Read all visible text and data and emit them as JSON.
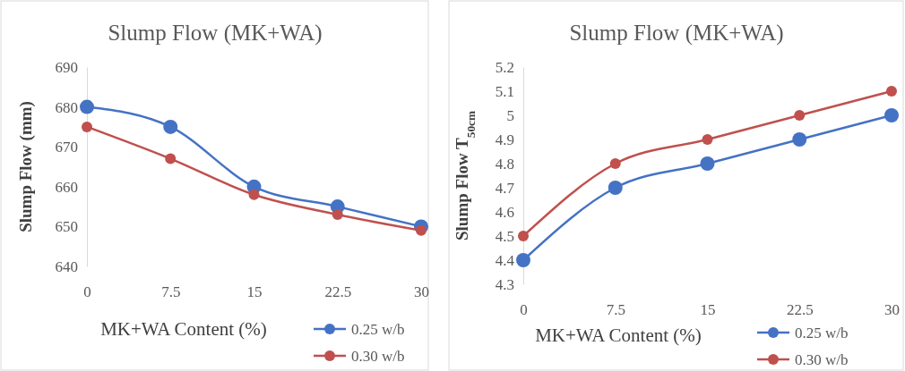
{
  "chart_data": [
    {
      "type": "line",
      "title": "Slump Flow (MK+WA)",
      "xlabel": "MK+WA Content (%)",
      "ylabel": "Slump Flow (mm)",
      "categories": [
        "0",
        "7.5",
        "15",
        "22.5",
        "30"
      ],
      "series": [
        {
          "name": "0.25 w/b",
          "color": "#4472c4",
          "values": [
            680,
            675,
            660,
            655,
            650
          ]
        },
        {
          "name": "0.30 w/b",
          "color": "#c0504d",
          "values": [
            675,
            667,
            658,
            653,
            649
          ]
        }
      ],
      "ylim": [
        640,
        690
      ],
      "yticks": [
        640,
        650,
        660,
        670,
        680,
        690
      ],
      "marker": "circle",
      "legend": "bottom right"
    },
    {
      "type": "line",
      "title": "Slump Flow  (MK+WA)",
      "xlabel": "MK+WA Content (%)",
      "ylabel": "Slump Flow T$_{50cm}$",
      "categories": [
        "0",
        "7.5",
        "15",
        "22.5",
        "30"
      ],
      "series": [
        {
          "name": "0.25 w/b",
          "color": "#4472c4",
          "values": [
            4.4,
            4.7,
            4.8,
            4.9,
            5.0
          ]
        },
        {
          "name": "0.30 w/b",
          "color": "#c0504d",
          "values": [
            4.5,
            4.8,
            4.9,
            5.0,
            5.1
          ]
        }
      ],
      "ylim": [
        4.3,
        5.2
      ],
      "yticks": [
        4.3,
        4.4,
        4.5,
        4.6,
        4.7,
        4.8,
        4.9,
        {
          "value": 5,
          "label": "5"
        },
        5.1,
        5.2
      ],
      "marker": "circle",
      "legend": "bottom right"
    }
  ]
}
